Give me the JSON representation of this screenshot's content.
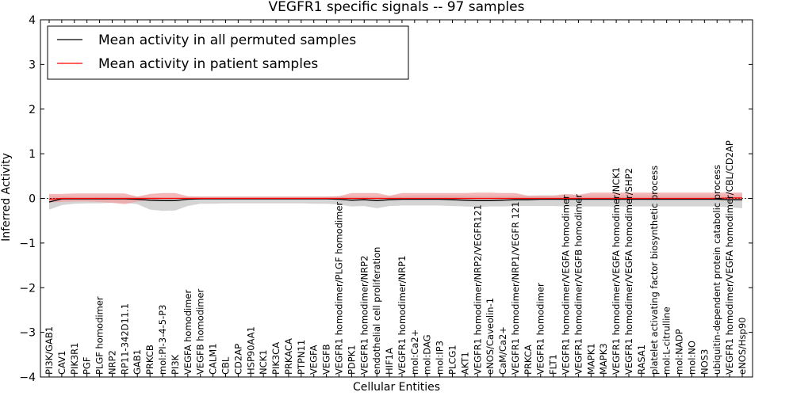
{
  "chart_data": {
    "type": "line",
    "title": "VEGFR1 specific signals -- 97 samples",
    "xlabel": "Cellular Entities",
    "ylabel": "Inferred Activity",
    "ylim": [
      -4,
      4
    ],
    "yticks": [
      "−4",
      "−3",
      "−2",
      "−1",
      "0",
      "1",
      "2",
      "3",
      "4"
    ],
    "legend_position": "top-left",
    "categories": [
      "PI3K/GAB1",
      "CAV1",
      "PIK3R1",
      "PGF",
      "PLGF homodimer",
      "NRP2",
      "RP11-342D11.1",
      "GAB1",
      "PRKCB",
      "mol:PI-3-4-5-P3",
      "PI3K",
      "VEGFA homodimer",
      "VEGFB homodimer",
      "CALM1",
      "CBL",
      "CD2AP",
      "HSP90AA1",
      "NCK1",
      "PIK3CA",
      "PRKACA",
      "PTPN11",
      "VEGFA",
      "VEGFB",
      "VEGFR1 homodimer/PLGF homodimer",
      "PDPK1",
      "VEGFR1 homodimer/NRP2",
      "endothelial cell proliferation",
      "HIF1A",
      "VEGFR1 homodimer/NRP1",
      "mol:Ca2+",
      "mol:DAG",
      "mol:IP3",
      "PLCG1",
      "AKT1",
      "VEGFR1 homodimer/NRP2/VEGFR121",
      "eNOS/Caveolin-1",
      "CaM/Ca2+",
      "VEGFR1 homodimer/NRP1/VEGFR 121",
      "PRKCA",
      "VEGFR1 homodimer",
      "FLT1",
      "VEGFR1 homodimer/VEGFA homodimer",
      "VEGFR1 homodimer/VEGFB homodimer",
      "MAPK1",
      "MAPK3",
      "VEGFR1 homodimer/VEGFA homodimer/NCK1",
      "VEGFR1 homodimer/VEGFA homodimer/SHP2",
      "RASA1",
      "platelet activating factor biosynthetic process",
      "mol:L-citrulline",
      "mol:NADP",
      "mol:NO",
      "NOS3",
      "ubiquitin-dependent protein catabolic process",
      "VEGFR1 homodimer/VEGFA homodimer/CBL/CD2AP",
      "eNOS/Hsp90"
    ],
    "series": [
      {
        "name": "Mean activity in all permuted samples",
        "color": "#000000",
        "band_color": "#b0b0b0",
        "values": [
          -0.08,
          -0.01,
          -0.01,
          -0.01,
          -0.01,
          -0.01,
          -0.01,
          -0.02,
          -0.04,
          -0.05,
          -0.05,
          -0.02,
          -0.01,
          -0.01,
          -0.01,
          -0.01,
          -0.01,
          -0.01,
          -0.01,
          -0.01,
          -0.01,
          -0.01,
          -0.01,
          -0.02,
          -0.04,
          -0.03,
          -0.05,
          -0.03,
          -0.02,
          -0.02,
          -0.02,
          -0.02,
          -0.03,
          -0.04,
          -0.05,
          -0.05,
          -0.04,
          -0.03,
          -0.03,
          -0.02,
          -0.02,
          -0.02,
          -0.02,
          -0.02,
          -0.02,
          -0.02,
          -0.02,
          -0.02,
          -0.02,
          -0.02,
          -0.02,
          -0.02,
          -0.02,
          -0.02,
          -0.03,
          -0.03
        ],
        "lower": [
          -0.25,
          -0.15,
          -0.12,
          -0.11,
          -0.11,
          -0.1,
          -0.1,
          -0.13,
          -0.25,
          -0.28,
          -0.27,
          -0.17,
          -0.12,
          -0.12,
          -0.11,
          -0.11,
          -0.11,
          -0.11,
          -0.11,
          -0.11,
          -0.11,
          -0.12,
          -0.12,
          -0.14,
          -0.18,
          -0.17,
          -0.22,
          -0.17,
          -0.16,
          -0.16,
          -0.16,
          -0.16,
          -0.17,
          -0.18,
          -0.19,
          -0.18,
          -0.18,
          -0.17,
          -0.17,
          -0.17,
          -0.17,
          -0.18,
          -0.18,
          -0.18,
          -0.18,
          -0.18,
          -0.18,
          -0.18,
          -0.18,
          -0.18,
          -0.18,
          -0.18,
          -0.18,
          -0.18,
          -0.2,
          -0.22
        ],
        "upper": [
          0.05,
          0.05,
          0.04,
          0.04,
          0.04,
          0.04,
          0.04,
          0.04,
          0.03,
          0.02,
          0.02,
          0.03,
          0.04,
          0.04,
          0.04,
          0.04,
          0.04,
          0.04,
          0.04,
          0.04,
          0.04,
          0.04,
          0.04,
          0.05,
          0.05,
          0.05,
          0.04,
          0.05,
          0.06,
          0.07,
          0.07,
          0.07,
          0.07,
          0.07,
          0.06,
          0.06,
          0.06,
          0.06,
          0.06,
          0.07,
          0.07,
          0.07,
          0.07,
          0.07,
          0.07,
          0.07,
          0.07,
          0.07,
          0.07,
          0.07,
          0.07,
          0.07,
          0.07,
          0.07,
          0.07,
          0.07
        ]
      },
      {
        "name": "Mean activity in patient samples",
        "color": "#ff0000",
        "band_color": "#f0a0a0",
        "values": [
          -0.02,
          0.0,
          0.0,
          0.0,
          0.0,
          0.0,
          0.0,
          0.0,
          0.0,
          0.0,
          0.0,
          0.0,
          0.0,
          0.0,
          0.0,
          0.0,
          0.0,
          0.0,
          0.0,
          0.0,
          0.0,
          0.0,
          0.0,
          0.0,
          0.0,
          0.0,
          0.0,
          0.0,
          0.0,
          0.0,
          0.0,
          0.0,
          0.0,
          0.0,
          0.0,
          0.0,
          0.0,
          0.0,
          0.0,
          0.0,
          0.0,
          0.0,
          0.0,
          0.0,
          0.0,
          0.0,
          0.0,
          0.0,
          0.0,
          0.0,
          0.0,
          0.0,
          0.0,
          0.0,
          0.01,
          0.01
        ],
        "lower": [
          -0.09,
          -0.08,
          -0.07,
          -0.07,
          -0.08,
          -0.1,
          -0.13,
          -0.07,
          -0.03,
          -0.02,
          -0.01,
          -0.02,
          -0.03,
          -0.02,
          -0.02,
          -0.02,
          -0.02,
          -0.02,
          -0.02,
          -0.02,
          -0.02,
          -0.02,
          -0.02,
          -0.02,
          -0.02,
          -0.02,
          -0.02,
          -0.02,
          -0.02,
          -0.02,
          -0.02,
          -0.02,
          -0.02,
          -0.02,
          -0.02,
          -0.02,
          -0.02,
          -0.02,
          -0.02,
          -0.02,
          -0.02,
          -0.02,
          -0.02,
          -0.02,
          -0.02,
          -0.02,
          -0.02,
          -0.02,
          -0.02,
          -0.02,
          -0.02,
          -0.02,
          -0.02,
          -0.02,
          -0.02,
          -0.02
        ],
        "upper": [
          0.1,
          0.1,
          0.11,
          0.11,
          0.11,
          0.11,
          0.11,
          0.04,
          0.1,
          0.12,
          0.12,
          0.05,
          0.04,
          0.04,
          0.04,
          0.04,
          0.04,
          0.04,
          0.04,
          0.04,
          0.04,
          0.04,
          0.04,
          0.05,
          0.12,
          0.12,
          0.12,
          0.06,
          0.12,
          0.12,
          0.12,
          0.12,
          0.12,
          0.12,
          0.13,
          0.13,
          0.12,
          0.12,
          0.06,
          0.06,
          0.06,
          0.1,
          0.08,
          0.13,
          0.13,
          0.13,
          0.13,
          0.13,
          0.13,
          0.13,
          0.13,
          0.13,
          0.13,
          0.13,
          0.13,
          0.13
        ]
      }
    ],
    "reference_line": 0
  }
}
